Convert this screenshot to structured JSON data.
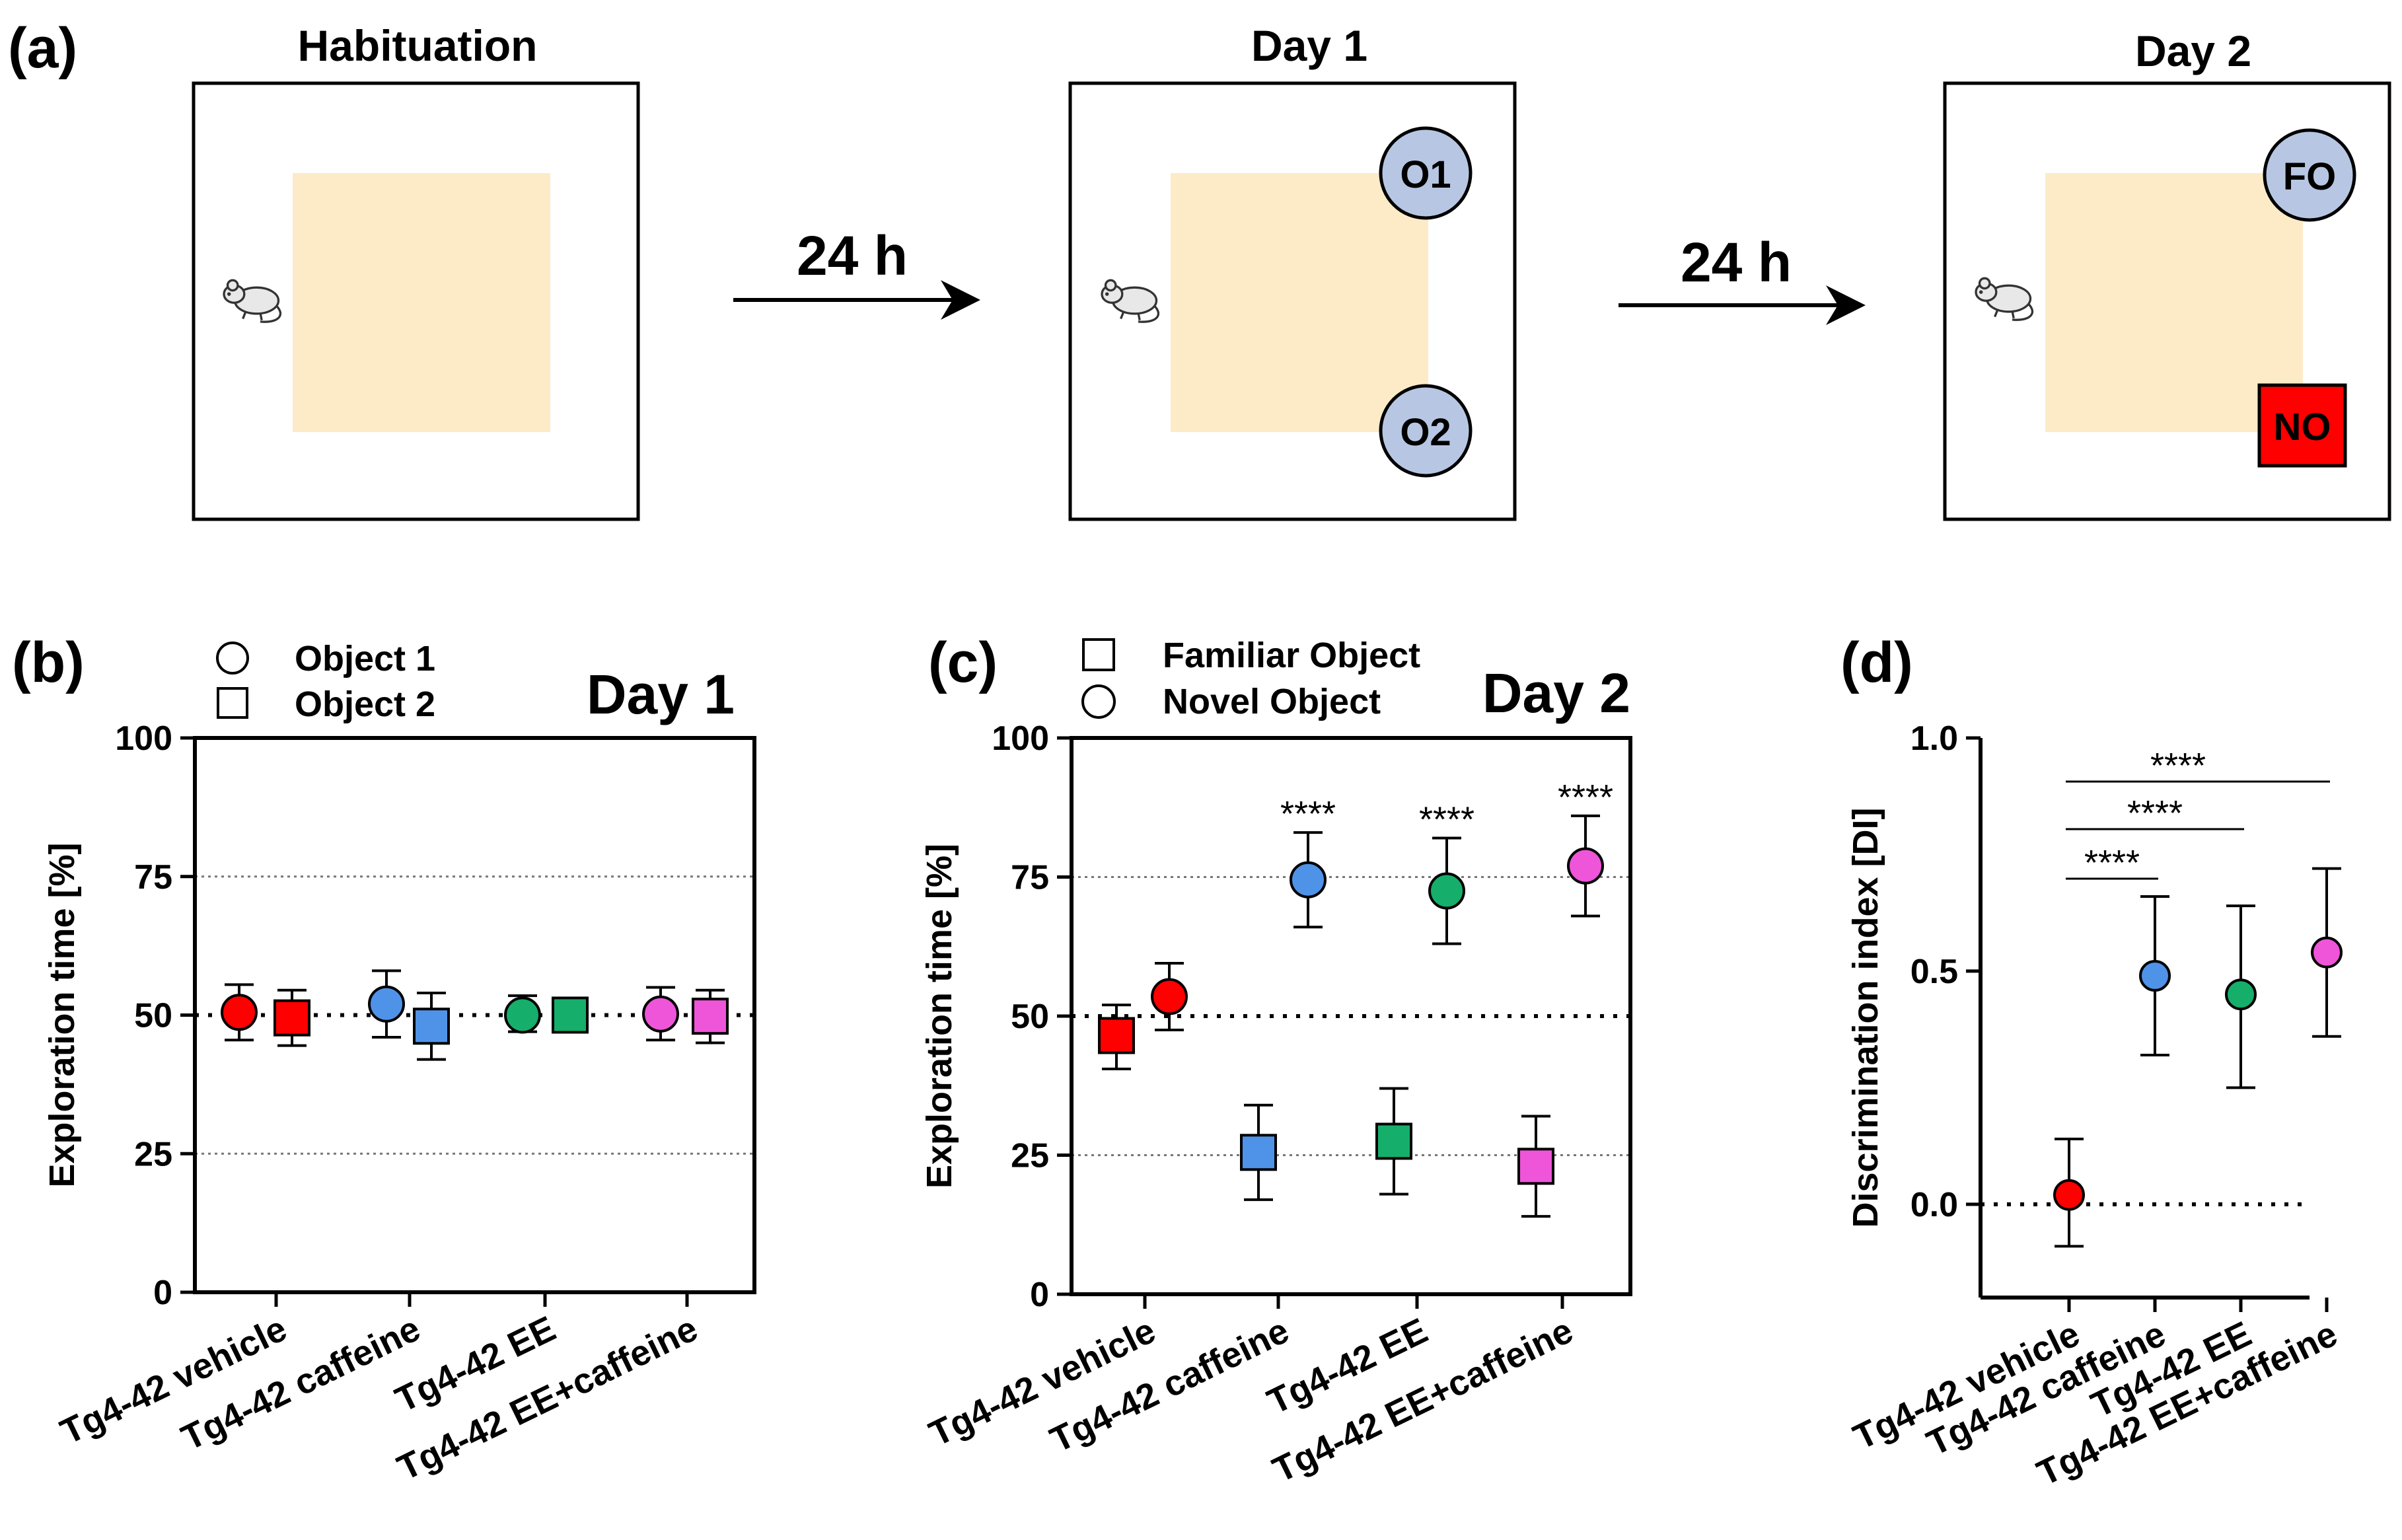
{
  "panel_a": {
    "label": "(a)",
    "stages": [
      {
        "title": "Habituation",
        "objects": []
      },
      {
        "title": "Day 1",
        "objects": [
          {
            "label": "O1",
            "shape": "circle"
          },
          {
            "label": "O2",
            "shape": "circle"
          }
        ]
      },
      {
        "title": "Day 2",
        "objects": [
          {
            "label": "FO",
            "shape": "circle"
          },
          {
            "label": "NO",
            "shape": "square"
          }
        ]
      }
    ],
    "arrows": [
      "24 h",
      "24 h"
    ],
    "colors": {
      "zone": "#fdebc8",
      "object": "#b7c7e3",
      "novel": "#ff0000"
    }
  },
  "chart_data": [
    {
      "type": "scatter",
      "panel_label": "(b)",
      "title": "Day 1",
      "ylabel": "Exploration time [%]",
      "ylim": [
        0,
        100
      ],
      "yticks": [
        0,
        25,
        50,
        75,
        100
      ],
      "categories": [
        "Tg4-42 vehicle",
        "Tg4-42 caffeine",
        "Tg4-42 EE",
        "Tg4-42 EE+caffeine"
      ],
      "colors": [
        "#ff0000",
        "#4f93e8",
        "#16ae6b",
        "#ee55d8"
      ],
      "legend": [
        {
          "label": "Object 1",
          "marker": "circle"
        },
        {
          "label": "Object 2",
          "marker": "square"
        }
      ],
      "reference_lines": [
        25,
        50,
        75
      ],
      "series": [
        {
          "name": "Object 1",
          "marker": "circle",
          "values": [
            50.5,
            52,
            50,
            50.2
          ],
          "error_low": [
            45.5,
            46,
            47,
            45.5
          ],
          "error_high": [
            55.5,
            58,
            53.5,
            55
          ]
        },
        {
          "name": "Object 2",
          "marker": "square",
          "values": [
            49.5,
            48,
            50,
            49.8
          ],
          "error_low": [
            44.5,
            42,
            47.5,
            45
          ],
          "error_high": [
            54.5,
            54,
            52.5,
            54.5
          ]
        }
      ]
    },
    {
      "type": "scatter",
      "panel_label": "(c)",
      "title": "Day 2",
      "ylabel": "Exploration time [%]",
      "ylim": [
        0,
        100
      ],
      "yticks": [
        0,
        25,
        50,
        75,
        100
      ],
      "categories": [
        "Tg4-42 vehicle",
        "Tg4-42 caffeine",
        "Tg4-42 EE",
        "Tg4-42 EE+caffeine"
      ],
      "colors": [
        "#ff0000",
        "#4f93e8",
        "#16ae6b",
        "#ee55d8"
      ],
      "legend": [
        {
          "label": "Familiar Object",
          "marker": "square"
        },
        {
          "label": "Novel Object",
          "marker": "circle"
        }
      ],
      "reference_lines": [
        25,
        50,
        75
      ],
      "series": [
        {
          "name": "Familiar Object",
          "marker": "square",
          "values": [
            46.5,
            25.5,
            27.5,
            23
          ],
          "error_low": [
            40.5,
            17,
            18,
            14
          ],
          "error_high": [
            52,
            34,
            37,
            32
          ]
        },
        {
          "name": "Novel Object",
          "marker": "circle",
          "values": [
            53.5,
            74.5,
            72.5,
            77
          ],
          "error_low": [
            47.5,
            66,
            63,
            68
          ],
          "error_high": [
            59.5,
            83,
            82,
            86
          ]
        }
      ],
      "annotations": [
        {
          "category": 1,
          "text": "****"
        },
        {
          "category": 2,
          "text": "****"
        },
        {
          "category": 3,
          "text": "****"
        }
      ]
    },
    {
      "type": "scatter",
      "panel_label": "(d)",
      "ylabel": "Discrimination index [DI]",
      "ylim": [
        -0.2,
        1.0
      ],
      "yticks": [
        0.0,
        0.5,
        1.0
      ],
      "yticklabels": [
        "0.0",
        "0.5",
        "1.0"
      ],
      "categories": [
        "Tg4-42 vehicle",
        "Tg4-42 caffeine",
        "Tg4-42 EE",
        "Tg4-42 EE+caffeine"
      ],
      "colors": [
        "#ff0000",
        "#4f93e8",
        "#16ae6b",
        "#ee55d8"
      ],
      "reference_lines": [
        0
      ],
      "series": [
        {
          "name": "Discrimination index",
          "marker": "circle",
          "values": [
            0.02,
            0.49,
            0.45,
            0.54
          ],
          "error_low": [
            -0.09,
            0.32,
            0.25,
            0.36
          ],
          "error_high": [
            0.14,
            0.66,
            0.64,
            0.72
          ]
        }
      ],
      "significance": [
        {
          "from": 0,
          "to": 1,
          "text": "****"
        },
        {
          "from": 0,
          "to": 2,
          "text": "****"
        },
        {
          "from": 0,
          "to": 3,
          "text": "****"
        }
      ]
    }
  ]
}
